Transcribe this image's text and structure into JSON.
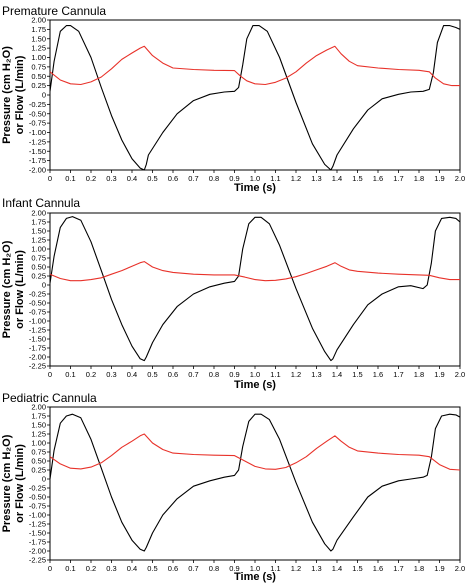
{
  "colors": {
    "pressure": "#e8322a",
    "flow": "#000000"
  },
  "chart_data": [
    {
      "type": "line",
      "title": "Premature Cannula",
      "xlabel": "Time (s)",
      "ylabel_line1": "Pressure (cm H₂O)",
      "ylabel_line2": "or Flow (L/min)",
      "xlim": [
        0,
        2.0
      ],
      "ylim": [
        -2.0,
        2.0
      ],
      "xticks": [
        "0",
        "0.1",
        "0.2",
        "0.3",
        "0.4",
        "0.5",
        "0.6",
        "0.7",
        "0.8",
        "0.9",
        "1.0",
        "1.1",
        "1.2",
        "1.3",
        "1.4",
        "1.5",
        "1.6",
        "1.7",
        "1.8",
        "1.9",
        "2.0"
      ],
      "yticks": [
        "2.00",
        "1.75",
        "1.50",
        "1.25",
        "1.00",
        "0.75",
        "0.50",
        "0.25",
        "0",
        "-0.25",
        "-0.50",
        "-0.75",
        "-1.00",
        "-1.25",
        "-1.50",
        "-1.75",
        "-2.00"
      ],
      "series": [
        {
          "color": "#000000",
          "x": [
            0,
            0.02,
            0.05,
            0.08,
            0.1,
            0.14,
            0.2,
            0.25,
            0.3,
            0.35,
            0.4,
            0.44,
            0.46,
            0.47,
            0.48,
            0.55,
            0.62,
            0.7,
            0.78,
            0.85,
            0.9,
            0.92,
            0.94,
            0.96,
            0.99,
            1.02,
            1.06,
            1.12,
            1.2,
            1.28,
            1.34,
            1.37,
            1.38,
            1.4,
            1.48,
            1.55,
            1.62,
            1.7,
            1.76,
            1.82,
            1.85,
            1.87,
            1.89,
            1.92,
            1.95,
            1.98,
            2.0
          ],
          "y": [
            0.1,
            0.9,
            1.7,
            1.85,
            1.85,
            1.7,
            1.0,
            0.2,
            -0.55,
            -1.2,
            -1.7,
            -1.95,
            -2.0,
            -1.85,
            -1.6,
            -1.0,
            -0.5,
            -0.15,
            0.02,
            0.08,
            0.1,
            0.2,
            0.8,
            1.5,
            1.85,
            1.85,
            1.7,
            1.0,
            -0.2,
            -1.3,
            -1.85,
            -2.0,
            -1.9,
            -1.6,
            -0.9,
            -0.4,
            -0.1,
            0.02,
            0.08,
            0.1,
            0.15,
            0.6,
            1.4,
            1.85,
            1.85,
            1.8,
            1.75
          ]
        },
        {
          "color": "#e8322a",
          "x": [
            0,
            0.05,
            0.1,
            0.15,
            0.2,
            0.25,
            0.3,
            0.35,
            0.4,
            0.44,
            0.46,
            0.5,
            0.55,
            0.6,
            0.7,
            0.8,
            0.9,
            0.93,
            0.96,
            1.0,
            1.05,
            1.1,
            1.15,
            1.2,
            1.25,
            1.3,
            1.35,
            1.39,
            1.42,
            1.46,
            1.5,
            1.6,
            1.7,
            1.8,
            1.85,
            1.88,
            1.92,
            1.96,
            2.0
          ],
          "y": [
            0.62,
            0.4,
            0.3,
            0.28,
            0.35,
            0.48,
            0.7,
            0.95,
            1.12,
            1.25,
            1.3,
            1.05,
            0.85,
            0.72,
            0.68,
            0.66,
            0.65,
            0.5,
            0.38,
            0.3,
            0.28,
            0.34,
            0.45,
            0.62,
            0.85,
            1.05,
            1.2,
            1.3,
            1.1,
            0.9,
            0.78,
            0.72,
            0.68,
            0.66,
            0.62,
            0.45,
            0.3,
            0.25,
            0.25
          ]
        }
      ]
    },
    {
      "type": "line",
      "title": "Infant Cannula",
      "xlabel": "Time (s)",
      "ylabel_line1": "Pressure (cm H₂O)",
      "ylabel_line2": "or Flow (L/min)",
      "xlim": [
        0,
        2.0
      ],
      "ylim": [
        -2.25,
        2.0
      ],
      "xticks": [
        "0",
        "0.1",
        "0.2",
        "0.3",
        "0.4",
        "0.5",
        "0.6",
        "0.7",
        "0.8",
        "0.9",
        "1.0",
        "1.1",
        "1.2",
        "1.3",
        "1.4",
        "1.5",
        "1.6",
        "1.7",
        "1.8",
        "1.9",
        "2.0"
      ],
      "yticks": [
        "2.00",
        "1.75",
        "1.50",
        "1.25",
        "1.00",
        "0.75",
        "0.50",
        "0.25",
        "0",
        "-0.25",
        "-0.50",
        "-0.75",
        "-1.00",
        "-1.25",
        "-1.50",
        "-1.75",
        "-2.00",
        "-2.25"
      ],
      "series": [
        {
          "color": "#000000",
          "x": [
            0,
            0.02,
            0.05,
            0.08,
            0.11,
            0.15,
            0.2,
            0.25,
            0.3,
            0.35,
            0.4,
            0.44,
            0.46,
            0.47,
            0.5,
            0.55,
            0.62,
            0.7,
            0.78,
            0.85,
            0.9,
            0.92,
            0.94,
            0.97,
            1.0,
            1.03,
            1.07,
            1.12,
            1.2,
            1.28,
            1.34,
            1.37,
            1.38,
            1.4,
            1.48,
            1.55,
            1.62,
            1.7,
            1.76,
            1.82,
            1.84,
            1.86,
            1.88,
            1.91,
            1.95,
            1.98,
            2.0
          ],
          "y": [
            0.05,
            0.8,
            1.6,
            1.85,
            1.9,
            1.8,
            1.2,
            0.4,
            -0.4,
            -1.1,
            -1.7,
            -2.05,
            -2.1,
            -2.0,
            -1.6,
            -1.1,
            -0.6,
            -0.25,
            -0.05,
            0.05,
            0.1,
            0.25,
            1.0,
            1.7,
            1.88,
            1.88,
            1.7,
            1.1,
            -0.1,
            -1.2,
            -1.85,
            -2.1,
            -2.05,
            -1.8,
            -1.1,
            -0.55,
            -0.25,
            -0.05,
            -0.02,
            -0.1,
            0.0,
            0.6,
            1.5,
            1.85,
            1.88,
            1.85,
            1.75
          ]
        },
        {
          "color": "#e8322a",
          "x": [
            0,
            0.05,
            0.1,
            0.15,
            0.2,
            0.25,
            0.3,
            0.35,
            0.4,
            0.44,
            0.46,
            0.5,
            0.55,
            0.6,
            0.7,
            0.8,
            0.9,
            0.95,
            1.0,
            1.05,
            1.1,
            1.15,
            1.2,
            1.25,
            1.3,
            1.35,
            1.39,
            1.42,
            1.46,
            1.5,
            1.6,
            1.7,
            1.8,
            1.85,
            1.9,
            1.95,
            2.0
          ],
          "y": [
            0.3,
            0.18,
            0.12,
            0.12,
            0.15,
            0.2,
            0.3,
            0.4,
            0.52,
            0.62,
            0.65,
            0.5,
            0.4,
            0.35,
            0.3,
            0.28,
            0.28,
            0.22,
            0.15,
            0.12,
            0.13,
            0.17,
            0.23,
            0.32,
            0.42,
            0.52,
            0.62,
            0.52,
            0.42,
            0.38,
            0.33,
            0.3,
            0.28,
            0.27,
            0.2,
            0.15,
            0.15
          ]
        }
      ]
    },
    {
      "type": "line",
      "title": "Pediatric Cannula",
      "xlabel": "Time (s)",
      "ylabel_line1": "Pressure (cm H₂O)",
      "ylabel_line2": "or Flow (L/min)",
      "xlim": [
        0,
        2.0
      ],
      "ylim": [
        -2.25,
        2.0
      ],
      "xticks": [
        "0",
        "0.1",
        "0.2",
        "0.3",
        "0.4",
        "0.5",
        "0.6",
        "0.7",
        "0.8",
        "0.9",
        "1.0",
        "1.1",
        "1.2",
        "1.3",
        "1.4",
        "1.5",
        "1.6",
        "1.7",
        "1.8",
        "1.9",
        "2.0"
      ],
      "yticks": [
        "2.00",
        "1.75",
        "1.50",
        "1.25",
        "1.00",
        "0.75",
        "0.50",
        "0.25",
        "0",
        "-0.25",
        "-0.50",
        "-0.75",
        "-1.00",
        "-1.25",
        "-1.50",
        "-1.75",
        "-2.00",
        "-2.25"
      ],
      "series": [
        {
          "color": "#000000",
          "x": [
            0,
            0.02,
            0.05,
            0.08,
            0.11,
            0.15,
            0.2,
            0.25,
            0.3,
            0.35,
            0.4,
            0.44,
            0.46,
            0.47,
            0.5,
            0.55,
            0.62,
            0.7,
            0.78,
            0.85,
            0.9,
            0.92,
            0.94,
            0.97,
            1.0,
            1.03,
            1.07,
            1.12,
            1.2,
            1.28,
            1.34,
            1.37,
            1.38,
            1.4,
            1.48,
            1.55,
            1.62,
            1.7,
            1.76,
            1.82,
            1.84,
            1.86,
            1.88,
            1.91,
            1.95,
            1.98,
            2.0
          ],
          "y": [
            0.0,
            0.8,
            1.55,
            1.75,
            1.8,
            1.7,
            1.1,
            0.3,
            -0.5,
            -1.2,
            -1.7,
            -1.95,
            -2.0,
            -1.9,
            -1.5,
            -1.0,
            -0.55,
            -0.2,
            -0.05,
            0.05,
            0.1,
            0.25,
            0.9,
            1.6,
            1.8,
            1.8,
            1.65,
            1.1,
            -0.1,
            -1.2,
            -1.8,
            -2.0,
            -1.95,
            -1.7,
            -1.05,
            -0.5,
            -0.2,
            -0.05,
            0.0,
            0.05,
            0.1,
            0.6,
            1.4,
            1.75,
            1.8,
            1.78,
            1.72
          ]
        },
        {
          "color": "#e8322a",
          "x": [
            0,
            0.05,
            0.1,
            0.15,
            0.2,
            0.25,
            0.3,
            0.35,
            0.4,
            0.44,
            0.46,
            0.5,
            0.55,
            0.6,
            0.7,
            0.8,
            0.9,
            0.95,
            1.0,
            1.05,
            1.1,
            1.15,
            1.2,
            1.25,
            1.3,
            1.35,
            1.39,
            1.42,
            1.46,
            1.5,
            1.6,
            1.7,
            1.8,
            1.85,
            1.9,
            1.95,
            2.0
          ],
          "y": [
            0.62,
            0.42,
            0.3,
            0.28,
            0.33,
            0.45,
            0.65,
            0.88,
            1.05,
            1.2,
            1.25,
            1.0,
            0.82,
            0.72,
            0.68,
            0.66,
            0.65,
            0.5,
            0.35,
            0.28,
            0.27,
            0.32,
            0.45,
            0.62,
            0.85,
            1.05,
            1.2,
            1.05,
            0.88,
            0.78,
            0.72,
            0.68,
            0.66,
            0.62,
            0.4,
            0.27,
            0.25
          ]
        }
      ]
    }
  ]
}
